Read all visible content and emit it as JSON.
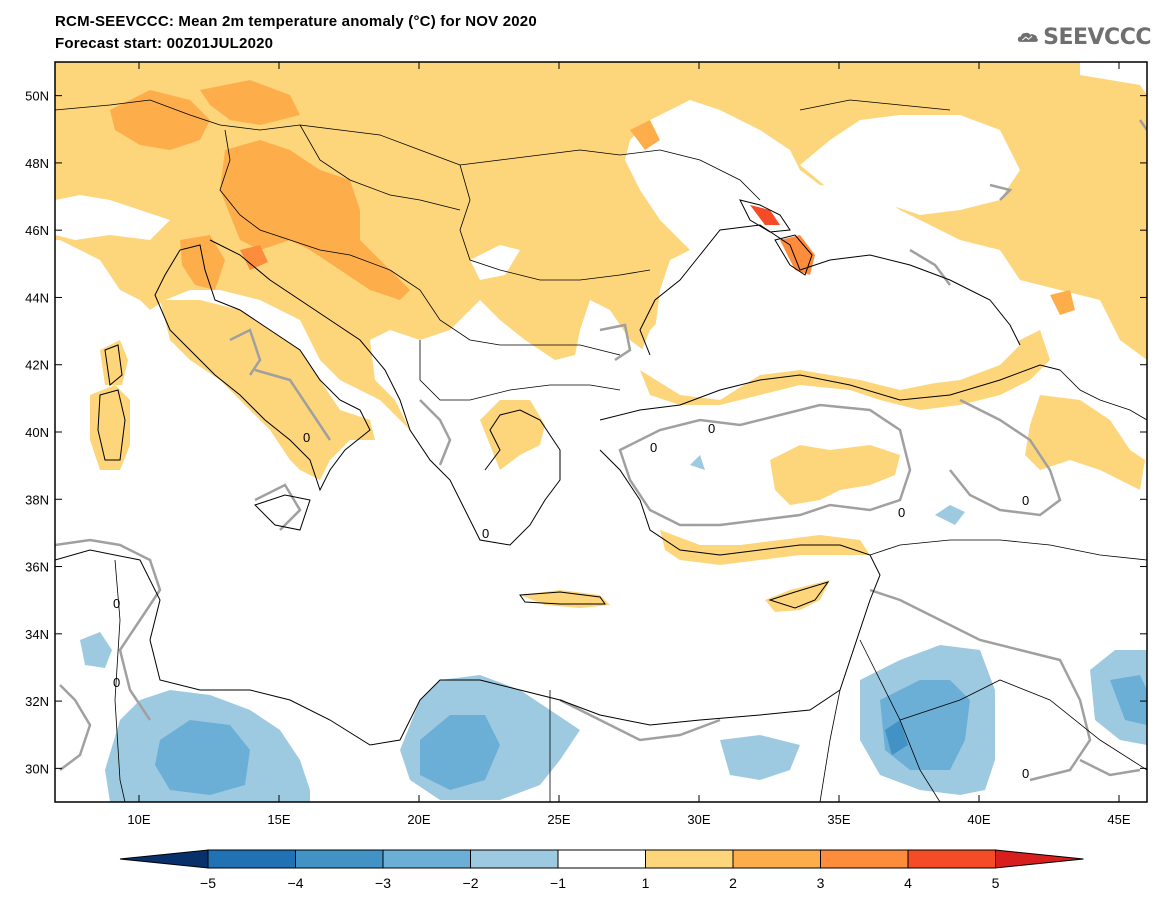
{
  "header": {
    "title_line1": "RCM-SEEVCCC: Mean 2m temperature anomaly (°C) for NOV 2020",
    "title_line2": "Forecast start: 00Z01JUL2020",
    "logo_text": "SEEVCCC"
  },
  "map": {
    "lon_labels": [
      "10E",
      "15E",
      "20E",
      "25E",
      "30E",
      "35E",
      "40E",
      "45E"
    ],
    "lat_labels": [
      "50N",
      "48N",
      "46N",
      "44N",
      "42N",
      "40N",
      "38N",
      "36N",
      "34N",
      "32N",
      "30N"
    ],
    "contour_label": "0",
    "extent": {
      "lon_min": 7,
      "lon_max": 46,
      "lat_min": 29,
      "lat_max": 51
    }
  },
  "colorbar": {
    "tick_labels": [
      "−5",
      "−4",
      "−3",
      "−2",
      "−1",
      "1",
      "2",
      "3",
      "4",
      "5"
    ],
    "colors": [
      "#08306b",
      "#2171b5",
      "#4292c6",
      "#6baed6",
      "#9ecae1",
      "#ffffff",
      "#fdd57a",
      "#fdae4b",
      "#fd8d3c",
      "#f54b26",
      "#d91e1e"
    ]
  }
}
